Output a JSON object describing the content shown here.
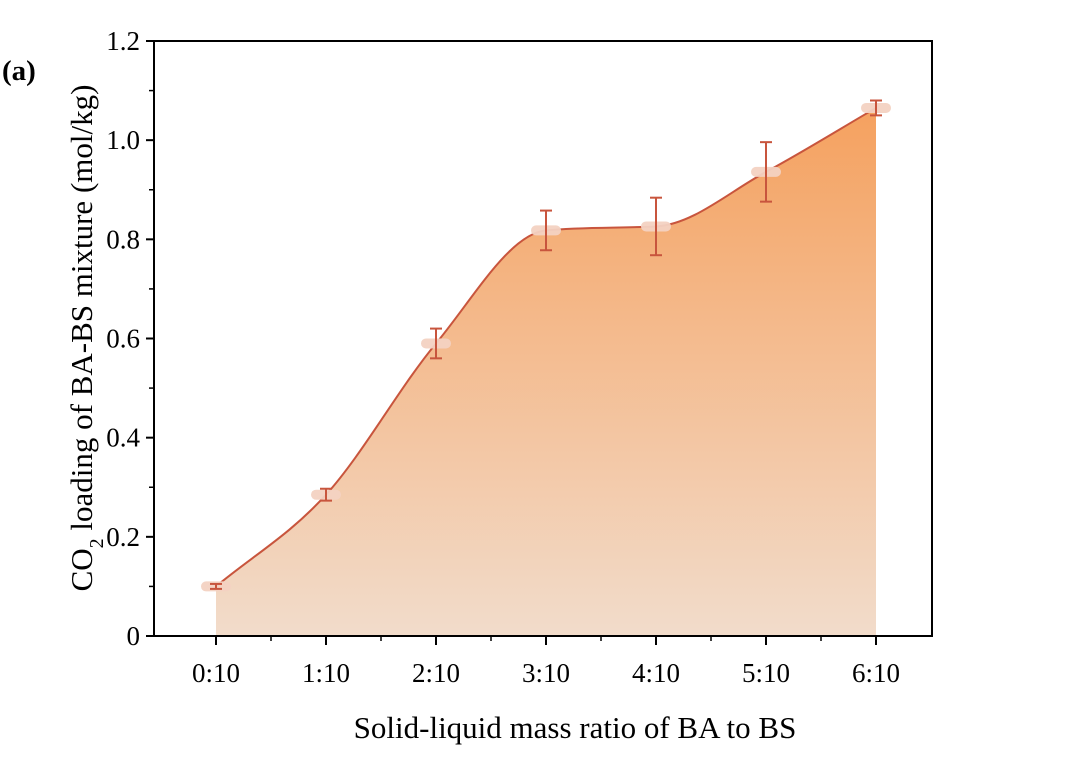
{
  "panel_label": "(a)",
  "colors": {
    "line": "#c8553d",
    "error_bar": "#c8553d",
    "fill_top": "#f5a15f",
    "fill_bottom": "#f2dccb",
    "marker": "#f3d2c2"
  },
  "chart_data": {
    "type": "area",
    "title": "",
    "xlabel": "Solid-liquid mass ratio of BA to BS",
    "ylabel_main": "CO",
    "ylabel_sub": "2",
    "ylabel_rest": " loading of BA-BS mixture (mol/kg)",
    "categories": [
      "0:10",
      "1:10",
      "2:10",
      "3:10",
      "4:10",
      "5:10",
      "6:10"
    ],
    "values": [
      0.1,
      0.285,
      0.59,
      0.818,
      0.826,
      0.936,
      1.065
    ],
    "error": [
      0.005,
      0.012,
      0.03,
      0.04,
      0.058,
      0.06,
      0.015
    ],
    "ylim": [
      0,
      1.2
    ],
    "yticks": [
      0,
      0.2,
      0.4,
      0.6,
      0.8,
      1.0,
      1.2
    ],
    "ytick_labels": [
      "0",
      "0.2",
      "0.4",
      "0.6",
      "0.8",
      "1.0",
      "1.2"
    ],
    "grid": false,
    "legend": "none"
  }
}
